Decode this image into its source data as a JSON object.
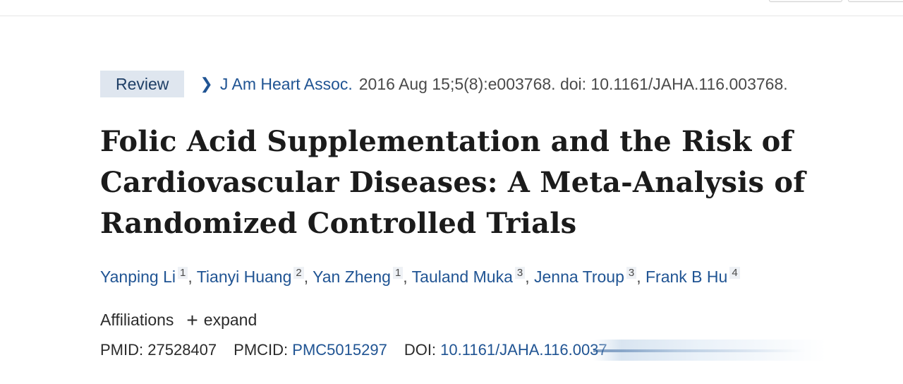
{
  "badge": {
    "label": "Review"
  },
  "citation": {
    "journal": "J Am Heart Assoc.",
    "details": "2016 Aug 15;5(8):e003768. doi: 10.1161/JAHA.116.003768."
  },
  "title": "Folic Acid Supplementation and the Risk of Cardiovascular Diseases: A Meta-Analysis of Randomized Controlled Trials",
  "authors": [
    {
      "name": "Yanping Li",
      "aff": "1"
    },
    {
      "name": "Tianyi Huang",
      "aff": "2"
    },
    {
      "name": "Yan Zheng",
      "aff": "1"
    },
    {
      "name": "Tauland Muka",
      "aff": "3"
    },
    {
      "name": "Jenna Troup",
      "aff": "3"
    },
    {
      "name": "Frank B Hu",
      "aff": "4"
    }
  ],
  "affiliations": {
    "label": "Affiliations",
    "expand_label": "expand",
    "expand_icon": "plus-icon"
  },
  "ids": {
    "pmid_label": "PMID:",
    "pmid": "27528407",
    "pmcid_label": "PMCID:",
    "pmcid": "PMC5015297",
    "doi_label": "DOI:",
    "doi_visible": "10.1161/JAHA.116.0037"
  },
  "colors": {
    "link": "#205493",
    "badge_bg": "#dfe6ef",
    "text": "#212121"
  }
}
